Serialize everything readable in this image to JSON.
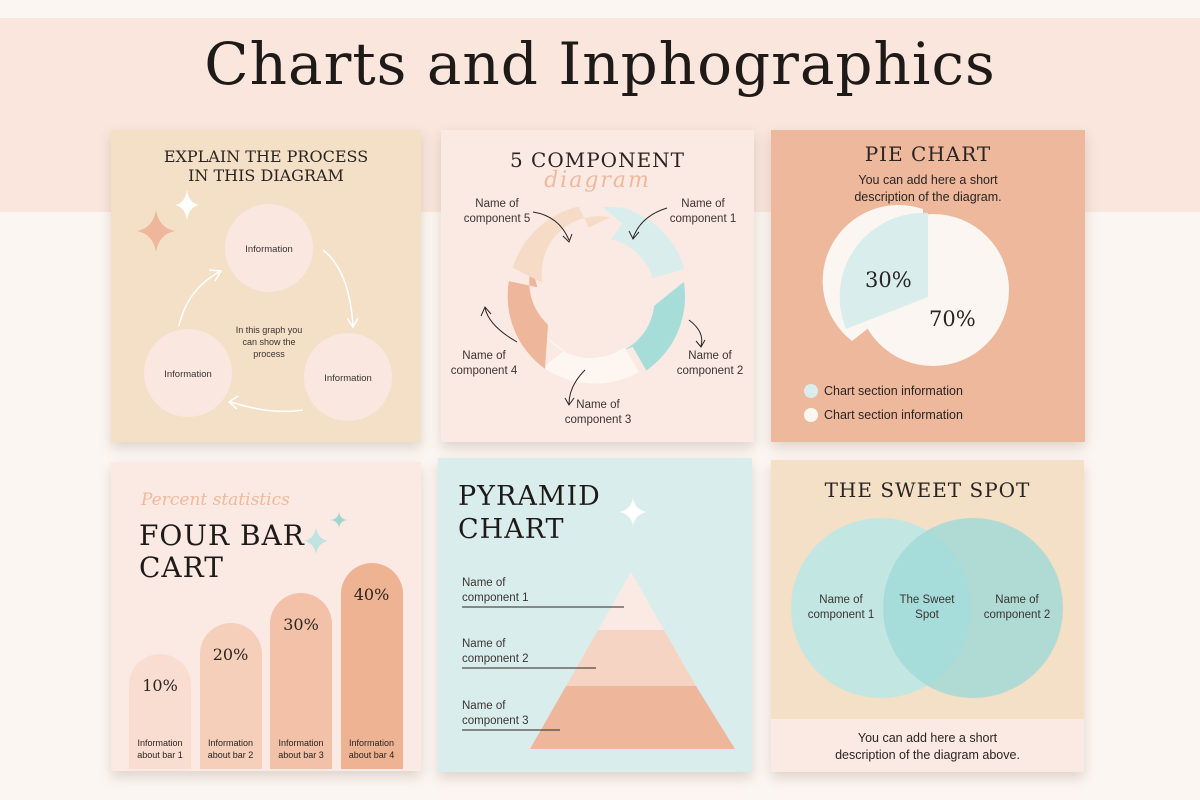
{
  "title": "Charts and Inphographics",
  "process": {
    "title_line1": "EXPLAIN THE PROCESS",
    "title_line2": "IN THIS DIAGRAM",
    "node_top": "Information",
    "node_left": "Information",
    "node_right": "Information",
    "center_line1": "In this graph you",
    "center_line2": "can show the",
    "center_line3": "process"
  },
  "five": {
    "title": "5 COMPONENT",
    "script": "diagram",
    "c5_l1": "Name of",
    "c5_l2": "component 5",
    "c1_l1": "Name of",
    "c1_l2": "component 1",
    "c4_l1": "Name of",
    "c4_l2": "component 4",
    "c2_l1": "Name of",
    "c2_l2": "component 2",
    "c3_l1": "Name of",
    "c3_l2": "component 3"
  },
  "pie": {
    "title": "PIE CHART",
    "desc_line1": "You can add here a short",
    "desc_line2": "description of the diagram.",
    "slice_small_label": "30%",
    "slice_large_label": "70%",
    "legend1": "Chart section information",
    "legend2": "Chart section information",
    "colors": {
      "small": "#d9eeec",
      "large": "#fcf6f2",
      "bg": "#edb89c"
    }
  },
  "chart_data": {
    "type": "bar",
    "categories": [
      "Information about bar 1",
      "Information about bar 2",
      "Information about bar 3",
      "Information about bar 4"
    ],
    "values": [
      10,
      20,
      30,
      40
    ],
    "labels": [
      "10%",
      "20%",
      "30%",
      "40%"
    ],
    "cat_line1": [
      "Information",
      "Information",
      "Information",
      "Information"
    ],
    "cat_line2": [
      "about bar 1",
      "about bar 2",
      "about bar 3",
      "about bar 4"
    ],
    "title": "FOUR BAR CART",
    "title_line1": "FOUR BAR",
    "title_line2": "CART",
    "subtitle": "Percent statistics",
    "colors": [
      "#f9ddd0",
      "#f6cfba",
      "#f2c1a7",
      "#eeb393"
    ]
  },
  "pyramid": {
    "title_line1": "PYRAMID",
    "title_line2": "CHART",
    "c1_l1": "Name of",
    "c1_l2": "component 1",
    "c2_l1": "Name of",
    "c2_l2": "component 2",
    "c3_l1": "Name of",
    "c3_l2": "component 3"
  },
  "venn": {
    "title": "THE SWEET SPOT",
    "left_l1": "Name of",
    "left_l2": "component 1",
    "center_l1": "The Sweet",
    "center_l2": "Spot",
    "right_l1": "Name of",
    "right_l2": "component 2",
    "desc_line1": "You can add here a short",
    "desc_line2": "description of the diagram above."
  }
}
